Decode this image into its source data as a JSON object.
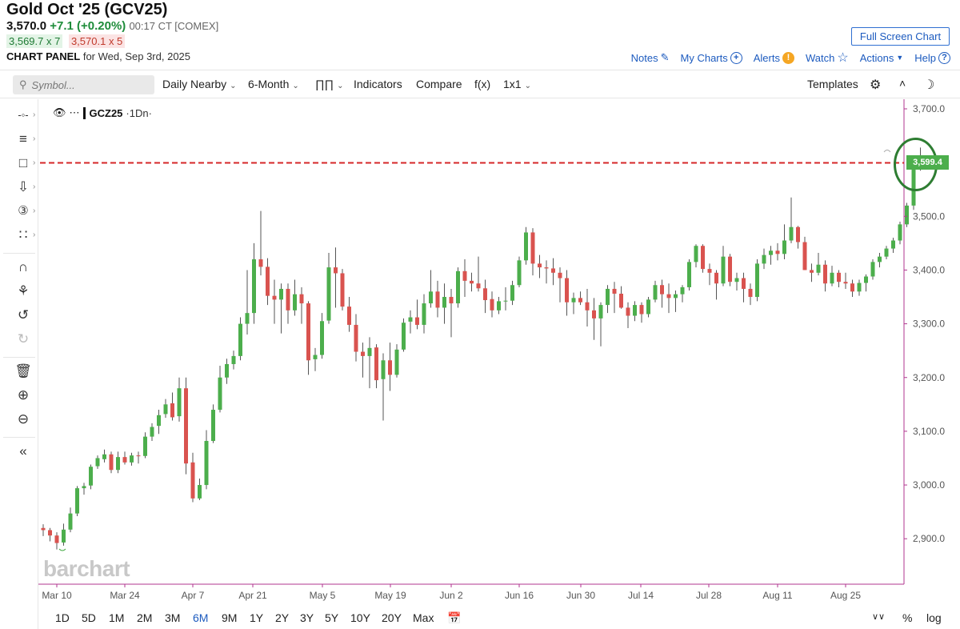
{
  "header": {
    "title": "Gold Oct '25 (GCV25)",
    "last": "3,570.0",
    "change": "+7.1 (+0.20%)",
    "time_exchange": "00:17 CT [COMEX]",
    "bid": "3,569.7 x 7",
    "ask": "3,570.1 x 5",
    "panel_label": "CHART PANEL",
    "panel_date": "for Wed, Sep 3rd, 2025",
    "fullscreen_label": "Full Screen Chart",
    "actions": {
      "notes": "Notes",
      "mycharts": "My Charts",
      "alerts": "Alerts",
      "watch": "Watch",
      "actions": "Actions",
      "help": "Help"
    }
  },
  "toolbar": {
    "symbol_placeholder": "Symbol...",
    "nearby": "Daily Nearby",
    "period": "6-Month",
    "indicators": "Indicators",
    "compare": "Compare",
    "fx": "f(x)",
    "layout": "1x1",
    "templates": "Templates"
  },
  "legend": {
    "symbol": "GCZ25",
    "interval": "·1Dn·"
  },
  "watermark": "barchart",
  "bottom": {
    "ranges": [
      "1D",
      "5D",
      "1M",
      "2M",
      "3M",
      "6M",
      "9M",
      "1Y",
      "2Y",
      "3Y",
      "5Y",
      "10Y",
      "20Y",
      "Max"
    ],
    "active_range": "6M",
    "percent": "%",
    "log": "log"
  },
  "colors": {
    "up": "#4cae4c",
    "down": "#d9534f",
    "reference_line": "#d62728",
    "highlight_circle": "#2e7d32",
    "accent": "#1d5bbf"
  },
  "chart_data": {
    "type": "candlestick",
    "symbol": "GCZ25",
    "interval": "Daily",
    "ylim": [
      2820,
      3720
    ],
    "y_ticks": [
      "3,700.0",
      "3,600.0",
      "3,500.0",
      "3,400.0",
      "3,300.0",
      "3,200.0",
      "3,100.0",
      "3,000.0",
      "2,900.0"
    ],
    "x_tick_labels": [
      "Mar 10",
      "Mar 24",
      "Apr 7",
      "Apr 21",
      "May 5",
      "May 19",
      "Jun 2",
      "Jun 16",
      "Jun 30",
      "Jul 14",
      "Jul 28",
      "Aug 11",
      "Aug 25"
    ],
    "last_price_label": "3,599.4",
    "reference_line_value": 3599.4,
    "ohlc": [
      [
        2920,
        2927,
        2905,
        2916
      ],
      [
        2916,
        2920,
        2895,
        2906
      ],
      [
        2906,
        2912,
        2880,
        2892
      ],
      [
        2893,
        2928,
        2887,
        2917
      ],
      [
        2917,
        2958,
        2912,
        2947
      ],
      [
        2947,
        2998,
        2942,
        2994
      ],
      [
        2994,
        3004,
        2982,
        2998
      ],
      [
        2999,
        3038,
        2992,
        3034
      ],
      [
        3035,
        3055,
        3030,
        3050
      ],
      [
        3048,
        3066,
        3042,
        3057
      ],
      [
        3057,
        3062,
        3022,
        3028
      ],
      [
        3028,
        3062,
        3022,
        3052
      ],
      [
        3052,
        3062,
        3038,
        3042
      ],
      [
        3042,
        3060,
        3036,
        3055
      ],
      [
        3055,
        3062,
        3040,
        3054
      ],
      [
        3054,
        3098,
        3050,
        3090
      ],
      [
        3090,
        3115,
        3082,
        3108
      ],
      [
        3110,
        3140,
        3095,
        3130
      ],
      [
        3132,
        3160,
        3125,
        3150
      ],
      [
        3152,
        3172,
        3120,
        3126
      ],
      [
        3128,
        3200,
        3118,
        3180
      ],
      [
        3180,
        3200,
        3020,
        3040
      ],
      [
        3042,
        3060,
        2968,
        2975
      ],
      [
        2975,
        3012,
        2972,
        3000
      ],
      [
        3000,
        3102,
        2992,
        3082
      ],
      [
        3082,
        3150,
        3078,
        3140
      ],
      [
        3140,
        3222,
        3135,
        3200
      ],
      [
        3200,
        3235,
        3188,
        3225
      ],
      [
        3225,
        3250,
        3215,
        3240
      ],
      [
        3240,
        3312,
        3232,
        3300
      ],
      [
        3300,
        3400,
        3280,
        3320
      ],
      [
        3320,
        3450,
        3300,
        3420
      ],
      [
        3420,
        3510,
        3390,
        3406
      ],
      [
        3406,
        3422,
        3335,
        3352
      ],
      [
        3352,
        3382,
        3300,
        3345
      ],
      [
        3345,
        3375,
        3282,
        3365
      ],
      [
        3365,
        3375,
        3300,
        3325
      ],
      [
        3325,
        3382,
        3315,
        3355
      ],
      [
        3355,
        3368,
        3300,
        3338
      ],
      [
        3338,
        3342,
        3205,
        3232
      ],
      [
        3234,
        3255,
        3212,
        3242
      ],
      [
        3242,
        3320,
        3235,
        3305
      ],
      [
        3306,
        3432,
        3300,
        3405
      ],
      [
        3405,
        3442,
        3330,
        3394
      ],
      [
        3394,
        3402,
        3325,
        3332
      ],
      [
        3332,
        3350,
        3285,
        3298
      ],
      [
        3298,
        3318,
        3230,
        3248
      ],
      [
        3248,
        3265,
        3200,
        3240
      ],
      [
        3240,
        3275,
        3180,
        3255
      ],
      [
        3256,
        3262,
        3180,
        3195
      ],
      [
        3197,
        3245,
        3120,
        3232
      ],
      [
        3232,
        3265,
        3175,
        3205
      ],
      [
        3205,
        3262,
        3200,
        3252
      ],
      [
        3252,
        3310,
        3248,
        3302
      ],
      [
        3304,
        3325,
        3282,
        3312
      ],
      [
        3312,
        3345,
        3290,
        3298
      ],
      [
        3298,
        3355,
        3282,
        3338
      ],
      [
        3338,
        3400,
        3330,
        3360
      ],
      [
        3360,
        3380,
        3312,
        3330
      ],
      [
        3330,
        3375,
        3300,
        3350
      ],
      [
        3350,
        3365,
        3275,
        3338
      ],
      [
        3338,
        3405,
        3330,
        3398
      ],
      [
        3398,
        3420,
        3350,
        3380
      ],
      [
        3380,
        3395,
        3360,
        3375
      ],
      [
        3375,
        3425,
        3360,
        3366
      ],
      [
        3366,
        3382,
        3320,
        3344
      ],
      [
        3346,
        3360,
        3312,
        3325
      ],
      [
        3325,
        3350,
        3318,
        3342
      ],
      [
        3342,
        3368,
        3325,
        3343
      ],
      [
        3343,
        3380,
        3335,
        3372
      ],
      [
        3372,
        3425,
        3368,
        3418
      ],
      [
        3418,
        3480,
        3410,
        3470
      ],
      [
        3470,
        3478,
        3390,
        3412
      ],
      [
        3412,
        3428,
        3385,
        3405
      ],
      [
        3405,
        3418,
        3375,
        3403
      ],
      [
        3403,
        3422,
        3372,
        3395
      ],
      [
        3395,
        3405,
        3340,
        3385
      ],
      [
        3385,
        3400,
        3315,
        3340
      ],
      [
        3340,
        3358,
        3318,
        3348
      ],
      [
        3348,
        3360,
        3335,
        3340
      ],
      [
        3340,
        3365,
        3295,
        3325
      ],
      [
        3325,
        3348,
        3270,
        3310
      ],
      [
        3310,
        3340,
        3258,
        3335
      ],
      [
        3335,
        3372,
        3320,
        3365
      ],
      [
        3365,
        3378,
        3320,
        3356
      ],
      [
        3356,
        3370,
        3328,
        3330
      ],
      [
        3330,
        3340,
        3292,
        3315
      ],
      [
        3315,
        3342,
        3305,
        3335
      ],
      [
        3335,
        3340,
        3302,
        3318
      ],
      [
        3318,
        3350,
        3312,
        3345
      ],
      [
        3345,
        3380,
        3340,
        3372
      ],
      [
        3372,
        3382,
        3330,
        3355
      ],
      [
        3355,
        3375,
        3320,
        3348
      ],
      [
        3348,
        3362,
        3322,
        3355
      ],
      [
        3355,
        3372,
        3340,
        3368
      ],
      [
        3368,
        3420,
        3362,
        3415
      ],
      [
        3415,
        3448,
        3405,
        3445
      ],
      [
        3445,
        3448,
        3395,
        3402
      ],
      [
        3402,
        3412,
        3372,
        3395
      ],
      [
        3395,
        3400,
        3345,
        3375
      ],
      [
        3375,
        3445,
        3370,
        3425
      ],
      [
        3425,
        3430,
        3370,
        3378
      ],
      [
        3378,
        3395,
        3362,
        3385
      ],
      [
        3385,
        3395,
        3340,
        3365
      ],
      [
        3365,
        3375,
        3335,
        3350
      ],
      [
        3350,
        3420,
        3342,
        3412
      ],
      [
        3412,
        3440,
        3402,
        3428
      ],
      [
        3428,
        3445,
        3410,
        3436
      ],
      [
        3436,
        3450,
        3418,
        3430
      ],
      [
        3430,
        3485,
        3420,
        3455
      ],
      [
        3455,
        3535,
        3450,
        3480
      ],
      [
        3480,
        3482,
        3440,
        3452
      ],
      [
        3452,
        3462,
        3400,
        3400
      ],
      [
        3400,
        3412,
        3378,
        3395
      ],
      [
        3395,
        3432,
        3390,
        3410
      ],
      [
        3410,
        3418,
        3360,
        3375
      ],
      [
        3375,
        3408,
        3370,
        3395
      ],
      [
        3395,
        3400,
        3368,
        3378
      ],
      [
        3378,
        3395,
        3365,
        3375
      ],
      [
        3375,
        3382,
        3350,
        3360
      ],
      [
        3360,
        3382,
        3352,
        3376
      ],
      [
        3376,
        3392,
        3360,
        3388
      ],
      [
        3388,
        3420,
        3382,
        3415
      ],
      [
        3415,
        3432,
        3405,
        3425
      ],
      [
        3425,
        3445,
        3420,
        3440
      ],
      [
        3440,
        3460,
        3432,
        3455
      ],
      [
        3455,
        3490,
        3448,
        3485
      ],
      [
        3485,
        3525,
        3480,
        3520
      ],
      [
        3520,
        3600,
        3512,
        3592
      ],
      [
        3593,
        3628,
        3585,
        3599
      ]
    ]
  }
}
